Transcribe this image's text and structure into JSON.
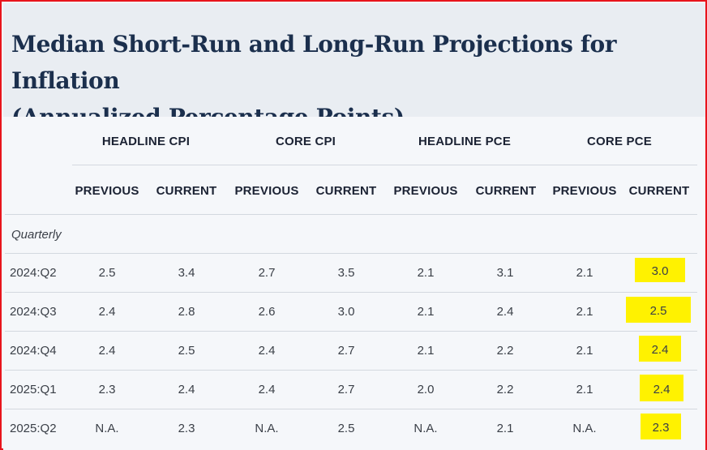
{
  "title": {
    "line1": "Median Short-Run and Long-Run Projections for Inflation",
    "line2": "(Annualized Percentage Points)"
  },
  "groups": [
    "HEADLINE CPI",
    "CORE CPI",
    "HEADLINE PCE",
    "CORE PCE"
  ],
  "subheaders": [
    "PREVIOUS",
    "CURRENT",
    "PREVIOUS",
    "CURRENT",
    "PREVIOUS",
    "CURRENT",
    "PREVIOUS",
    "CURRENT"
  ],
  "section_label": "Quarterly",
  "rows": [
    {
      "label": "2024:Q2",
      "values": [
        "2.5",
        "3.4",
        "2.7",
        "3.5",
        "2.1",
        "3.1",
        "2.1",
        "3.0"
      ]
    },
    {
      "label": "2024:Q3",
      "values": [
        "2.4",
        "2.8",
        "2.6",
        "3.0",
        "2.1",
        "2.4",
        "2.1",
        "2.5"
      ]
    },
    {
      "label": "2024:Q4",
      "values": [
        "2.4",
        "2.5",
        "2.4",
        "2.7",
        "2.1",
        "2.2",
        "2.1",
        "2.4"
      ]
    },
    {
      "label": "2025:Q1",
      "values": [
        "2.3",
        "2.4",
        "2.4",
        "2.7",
        "2.0",
        "2.2",
        "2.1",
        "2.4"
      ]
    },
    {
      "label": "2025:Q2",
      "values": [
        "N.A.",
        "2.3",
        "N.A.",
        "2.5",
        "N.A.",
        "2.1",
        "N.A.",
        "2.3"
      ]
    }
  ],
  "colors": {
    "highlight": "#fff200",
    "border": "#e8141c",
    "title": "#1b2f4d"
  }
}
